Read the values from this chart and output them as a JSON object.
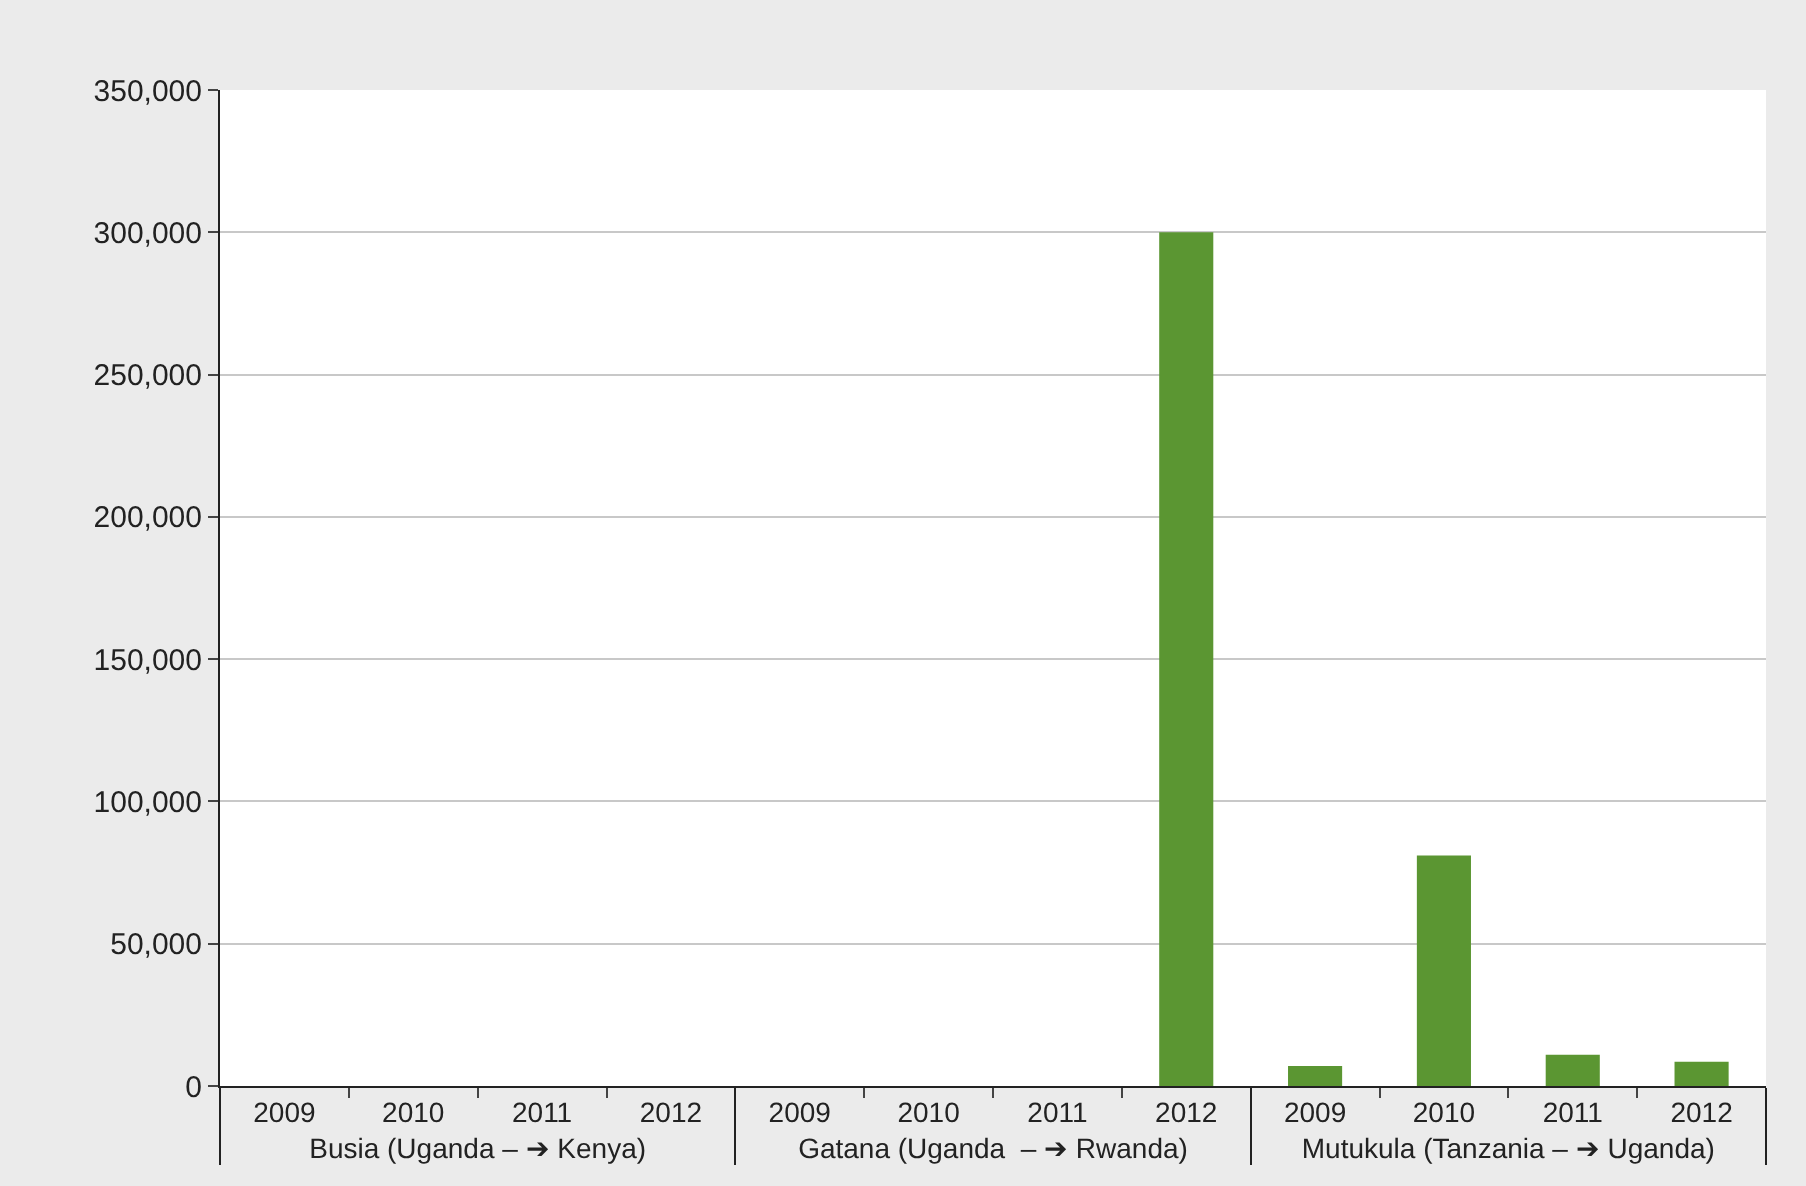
{
  "chart_data": {
    "type": "bar",
    "categories": [
      "2009",
      "2010",
      "2011",
      "2012",
      "2009",
      "2010",
      "2011",
      "2012",
      "2009",
      "2010",
      "2011",
      "2012"
    ],
    "values": [
      null,
      null,
      null,
      null,
      null,
      null,
      null,
      300000,
      7000,
      81000,
      11000,
      8500
    ],
    "color": "#5b9632",
    "annotations": [
      "Busia (Uganda – ➔ Kenya)",
      "Gatana (Uganda  – ➔ Rwanda)",
      "Mutukula (Tanzania – ➔ Uganda)"
    ],
    "ylim": [
      0,
      350000
    ],
    "yticks": [
      {
        "value": 0,
        "label": "0"
      },
      {
        "value": 50000,
        "label": "50,000"
      },
      {
        "value": 100000,
        "label": "100,000"
      },
      {
        "value": 150000,
        "label": "150,000"
      },
      {
        "value": 200000,
        "label": "200,000"
      },
      {
        "value": 250000,
        "label": "250,000"
      },
      {
        "value": 300000,
        "label": "300,000"
      },
      {
        "value": 350000,
        "label": "350,000"
      }
    ],
    "grid": "y",
    "legend": false
  }
}
